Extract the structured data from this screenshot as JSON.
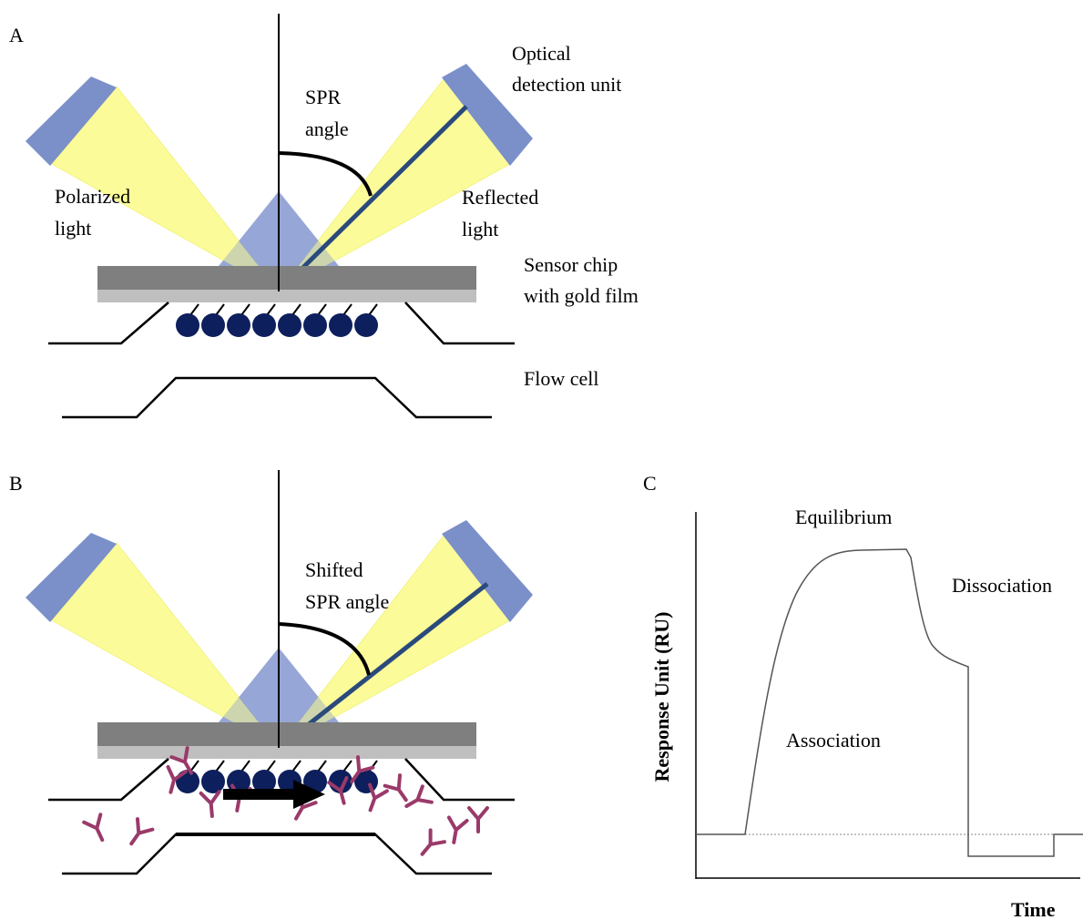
{
  "panel_a": {
    "label": "A",
    "spr_angle": [
      "SPR",
      "angle"
    ],
    "optical_detection_unit": [
      "Optical",
      "detection unit"
    ],
    "polarized_light": [
      "Polarized",
      "light"
    ],
    "reflected_light": [
      "Reflected",
      "light"
    ],
    "sensor_chip": [
      "Sensor chip",
      "with gold film"
    ],
    "flow_cell": "Flow cell"
  },
  "panel_b": {
    "label": "B",
    "shifted_spr_angle": [
      "Shifted",
      "SPR angle"
    ]
  },
  "panel_c": {
    "label": "C",
    "y_axis_label": "Response Unit (RU)",
    "x_axis_label": "Time",
    "annotations": {
      "equilibrium": "Equilibrium",
      "dissociation": "Dissociation",
      "association": "Association"
    }
  }
}
